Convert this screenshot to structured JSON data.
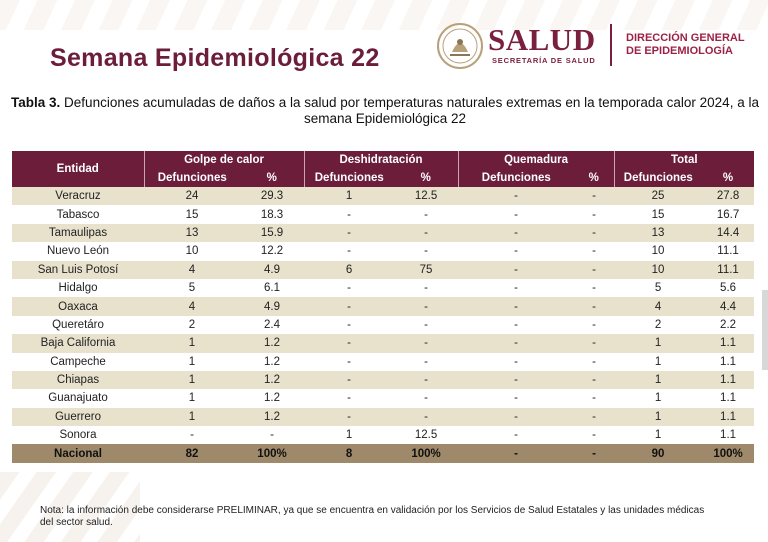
{
  "header": {
    "title": "Semana Epidemiológica 22",
    "brand_name": "SALUD",
    "brand_sub": "SECRETARÍA DE SALUD",
    "dept_line1": "DIRECCIÓN GENERAL",
    "dept_line2": "DE EPIDEMIOLOGÍA",
    "seal_icon": "coat-of-arms-icon",
    "brand_color": "#7a1f3d"
  },
  "caption": {
    "label": "Tabla 3.",
    "text": " Defunciones acumuladas de daños a la salud por temperaturas naturales extremas en la temporada calor 2024, a la semana Epidemiológica 22"
  },
  "table": {
    "entity_header": "Entidad",
    "groups": [
      "Golpe de calor",
      "Deshidratación",
      "Quemadura",
      "Total"
    ],
    "sub_headers": [
      "Defunciones",
      "%"
    ],
    "rows": [
      [
        "Veracruz",
        "24",
        "29.3",
        "1",
        "12.5",
        "-",
        "-",
        "25",
        "27.8"
      ],
      [
        "Tabasco",
        "15",
        "18.3",
        "-",
        "-",
        "-",
        "-",
        "15",
        "16.7"
      ],
      [
        "Tamaulipas",
        "13",
        "15.9",
        "-",
        "-",
        "-",
        "-",
        "13",
        "14.4"
      ],
      [
        "Nuevo León",
        "10",
        "12.2",
        "-",
        "-",
        "-",
        "-",
        "10",
        "11.1"
      ],
      [
        "San Luis Potosí",
        "4",
        "4.9",
        "6",
        "75",
        "-",
        "-",
        "10",
        "11.1"
      ],
      [
        "Hidalgo",
        "5",
        "6.1",
        "-",
        "-",
        "-",
        "-",
        "5",
        "5.6"
      ],
      [
        "Oaxaca",
        "4",
        "4.9",
        "-",
        "-",
        "-",
        "-",
        "4",
        "4.4"
      ],
      [
        "Queretáro",
        "2",
        "2.4",
        "-",
        "-",
        "-",
        "-",
        "2",
        "2.2"
      ],
      [
        "Baja California",
        "1",
        "1.2",
        "-",
        "-",
        "-",
        "-",
        "1",
        "1.1"
      ],
      [
        "Campeche",
        "1",
        "1.2",
        "-",
        "-",
        "-",
        "-",
        "1",
        "1.1"
      ],
      [
        "Chiapas",
        "1",
        "1.2",
        "-",
        "-",
        "-",
        "-",
        "1",
        "1.1"
      ],
      [
        "Guanajuato",
        "1",
        "1.2",
        "-",
        "-",
        "-",
        "-",
        "1",
        "1.1"
      ],
      [
        "Guerrero",
        "1",
        "1.2",
        "-",
        "-",
        "-",
        "-",
        "1",
        "1.1"
      ],
      [
        "Sonora",
        "-",
        "-",
        "1",
        "12.5",
        "-",
        "-",
        "1",
        "1.1"
      ]
    ],
    "total_row": [
      "Nacional",
      "82",
      "100%",
      "8",
      "100%",
      "-",
      "-",
      "90",
      "100%"
    ],
    "colors": {
      "header_bg": "#6b1d3a",
      "stripe": "#e8e2cd",
      "total_bg": "#9e8a6a"
    }
  },
  "footnote": "Nota: la información debe considerarse PRELIMINAR, ya que se encuentra en validación por los Servicios de Salud Estatales y las unidades médicas del sector salud."
}
